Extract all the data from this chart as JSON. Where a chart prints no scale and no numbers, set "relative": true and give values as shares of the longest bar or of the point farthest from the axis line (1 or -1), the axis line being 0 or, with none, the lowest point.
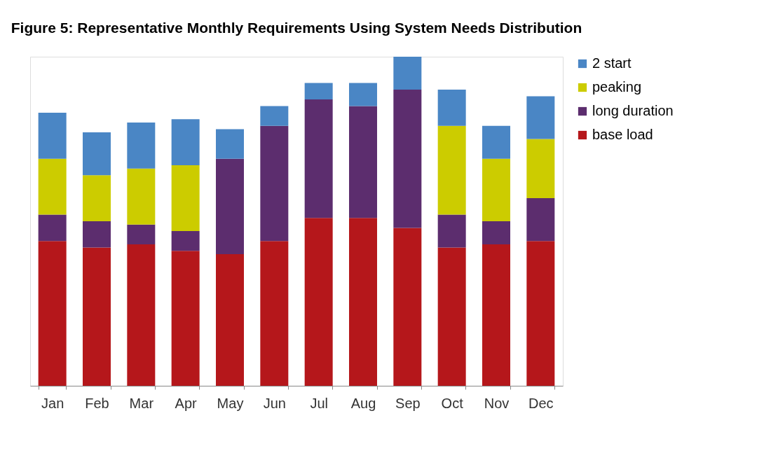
{
  "chart_data": {
    "type": "bar",
    "title": "Figure 5: Representative Monthly Requirements Using System Needs Distribution",
    "categories": [
      "Jan",
      "Feb",
      "Mar",
      "Apr",
      "May",
      "Jun",
      "Jul",
      "Aug",
      "Sep",
      "Oct",
      "Nov",
      "Dec"
    ],
    "relative": true,
    "stacked": true,
    "legend": "right",
    "series": [
      {
        "name": "base load",
        "color": "#b5171b",
        "values": [
          0.44,
          0.42,
          0.43,
          0.41,
          0.4,
          0.44,
          0.51,
          0.51,
          0.48,
          0.42,
          0.43,
          0.44
        ]
      },
      {
        "name": "long duration",
        "color": "#5c2d6e",
        "values": [
          0.08,
          0.08,
          0.06,
          0.06,
          0.29,
          0.35,
          0.36,
          0.34,
          0.42,
          0.1,
          0.07,
          0.13
        ]
      },
      {
        "name": "peaking",
        "color": "#cccc00",
        "values": [
          0.17,
          0.14,
          0.17,
          0.2,
          null,
          null,
          null,
          null,
          null,
          0.27,
          0.19,
          0.18
        ]
      },
      {
        "name": "2 start",
        "color": "#4a86c5",
        "values": [
          0.14,
          0.13,
          0.14,
          0.14,
          0.09,
          0.06,
          0.05,
          0.07,
          0.1,
          0.11,
          0.1,
          0.13
        ]
      }
    ]
  }
}
